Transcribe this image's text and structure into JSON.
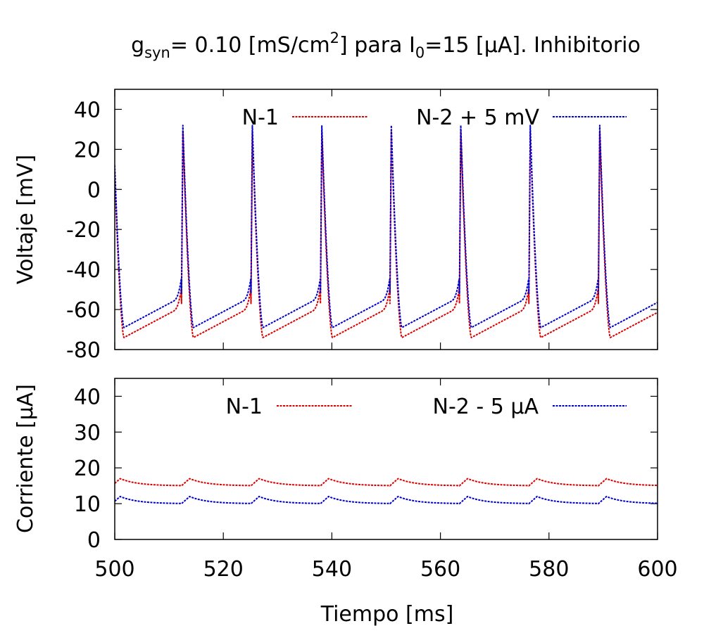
{
  "figure": {
    "title_base": "g",
    "title_sub": "syn",
    "title_part2": "= 0.10 [mS/cm",
    "title_sup": "2",
    "title_part3": "] para I",
    "title_sub2": "0",
    "title_part4": "=15 [μA]. Inhibitorio",
    "xlabel": "Tiempo [ms]"
  },
  "chart_data": [
    {
      "type": "line",
      "ylabel": "Voltaje [mV]",
      "xlim": [
        500,
        600
      ],
      "ylim": [
        -80,
        50
      ],
      "xticks": [
        500,
        520,
        540,
        560,
        580,
        600
      ],
      "yticks": [
        -80,
        -60,
        -40,
        -20,
        0,
        20,
        40
      ],
      "grid": false,
      "legend_position": "top",
      "spike_times": [
        512.3,
        525.1,
        537.9,
        550.7,
        563.5,
        576.3,
        589.1
      ],
      "series": [
        {
          "name": "N-1",
          "color": "#dd0000",
          "rest_min": -74,
          "pre_spike": -57,
          "peak": 29
        },
        {
          "name": "N-2 + 5 mV",
          "color": "#0000cc",
          "rest_min": -69,
          "pre_spike": -52,
          "peak": 32
        }
      ]
    },
    {
      "type": "line",
      "ylabel": "Corriente [μA]",
      "xlim": [
        500,
        600
      ],
      "ylim": [
        0,
        45
      ],
      "xticks": [
        500,
        520,
        540,
        560,
        580,
        600
      ],
      "yticks": [
        0,
        10,
        20,
        30,
        40
      ],
      "grid": false,
      "legend_position": "top",
      "spike_times": [
        512.3,
        525.1,
        537.9,
        550.7,
        563.5,
        576.3,
        589.1
      ],
      "series": [
        {
          "name": "N-1",
          "color": "#dd0000",
          "baseline": 15.0,
          "peak": 17.0
        },
        {
          "name": "N-2 - 5 μA",
          "color": "#0000cc",
          "baseline": 10.0,
          "peak": 12.0
        }
      ]
    }
  ]
}
